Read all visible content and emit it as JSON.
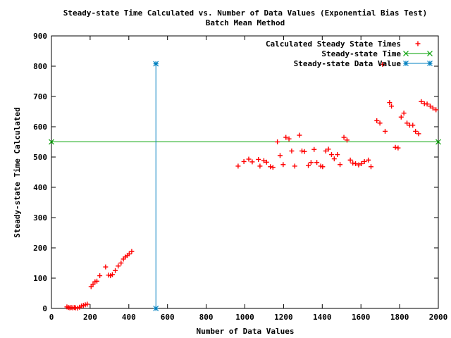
{
  "chart_data": {
    "type": "scatter",
    "title": "Steady-state Time Calculated vs. Number of Data Values (Exponential Bias Test)",
    "subtitle": "Batch Mean Method",
    "xlabel": "Number of Data Values",
    "ylabel": "Steady-state Time Calculated",
    "xlim": [
      0,
      2000
    ],
    "ylim": [
      0,
      900
    ],
    "xticks": [
      "0",
      "200",
      "400",
      "600",
      "800",
      "1000",
      "1200",
      "1400",
      "1600",
      "1800",
      "2000"
    ],
    "yticks": [
      "0",
      "100",
      "200",
      "300",
      "400",
      "500",
      "600",
      "700",
      "800",
      "900"
    ],
    "grid": false,
    "legend_position": "top-right",
    "series": [
      {
        "name": "Calculated Steady State Times",
        "color": "#ff0000",
        "marker": "plus",
        "points": [
          [
            80,
            5
          ],
          [
            88,
            3
          ],
          [
            95,
            2
          ],
          [
            102,
            3
          ],
          [
            110,
            2
          ],
          [
            118,
            3
          ],
          [
            125,
            2
          ],
          [
            135,
            1
          ],
          [
            145,
            4
          ],
          [
            155,
            8
          ],
          [
            165,
            10
          ],
          [
            175,
            12
          ],
          [
            185,
            14
          ],
          [
            205,
            72
          ],
          [
            215,
            80
          ],
          [
            225,
            88
          ],
          [
            235,
            90
          ],
          [
            250,
            108
          ],
          [
            280,
            137
          ],
          [
            295,
            110
          ],
          [
            305,
            108
          ],
          [
            315,
            112
          ],
          [
            330,
            125
          ],
          [
            345,
            140
          ],
          [
            360,
            150
          ],
          [
            372,
            163
          ],
          [
            382,
            170
          ],
          [
            392,
            175
          ],
          [
            402,
            180
          ],
          [
            415,
            188
          ],
          [
            965,
            470
          ],
          [
            995,
            485
          ],
          [
            1020,
            493
          ],
          [
            1038,
            484
          ],
          [
            1070,
            492
          ],
          [
            1078,
            470
          ],
          [
            1098,
            488
          ],
          [
            1112,
            483
          ],
          [
            1132,
            468
          ],
          [
            1145,
            466
          ],
          [
            1168,
            550
          ],
          [
            1182,
            505
          ],
          [
            1198,
            475
          ],
          [
            1212,
            565
          ],
          [
            1228,
            560
          ],
          [
            1242,
            520
          ],
          [
            1258,
            470
          ],
          [
            1282,
            572
          ],
          [
            1295,
            520
          ],
          [
            1308,
            518
          ],
          [
            1328,
            472
          ],
          [
            1342,
            482
          ],
          [
            1358,
            525
          ],
          [
            1372,
            482
          ],
          [
            1392,
            470
          ],
          [
            1402,
            468
          ],
          [
            1418,
            520
          ],
          [
            1432,
            526
          ],
          [
            1448,
            508
          ],
          [
            1462,
            494
          ],
          [
            1478,
            508
          ],
          [
            1492,
            475
          ],
          [
            1512,
            565
          ],
          [
            1528,
            556
          ],
          [
            1545,
            490
          ],
          [
            1558,
            480
          ],
          [
            1572,
            478
          ],
          [
            1588,
            474
          ],
          [
            1602,
            478
          ],
          [
            1618,
            485
          ],
          [
            1638,
            490
          ],
          [
            1652,
            468
          ],
          [
            1682,
            620
          ],
          [
            1698,
            612
          ],
          [
            1712,
            806
          ],
          [
            1725,
            585
          ],
          [
            1748,
            680
          ],
          [
            1758,
            668
          ],
          [
            1778,
            532
          ],
          [
            1792,
            530
          ],
          [
            1808,
            632
          ],
          [
            1822,
            645
          ],
          [
            1838,
            612
          ],
          [
            1852,
            605
          ],
          [
            1868,
            605
          ],
          [
            1882,
            585
          ],
          [
            1898,
            577
          ],
          [
            1912,
            683
          ],
          [
            1928,
            676
          ],
          [
            1942,
            675
          ],
          [
            1958,
            668
          ],
          [
            1972,
            662
          ],
          [
            1988,
            656
          ]
        ]
      },
      {
        "name": "Steady-state Time",
        "color": "#00a000",
        "marker": "x",
        "points": [
          [
            0,
            550
          ],
          [
            2000,
            550
          ]
        ]
      },
      {
        "name": "Steady-state Data Value",
        "color": "#0080c0",
        "marker": "star",
        "points": [
          [
            540,
            808
          ],
          [
            540,
            0
          ]
        ]
      }
    ]
  }
}
